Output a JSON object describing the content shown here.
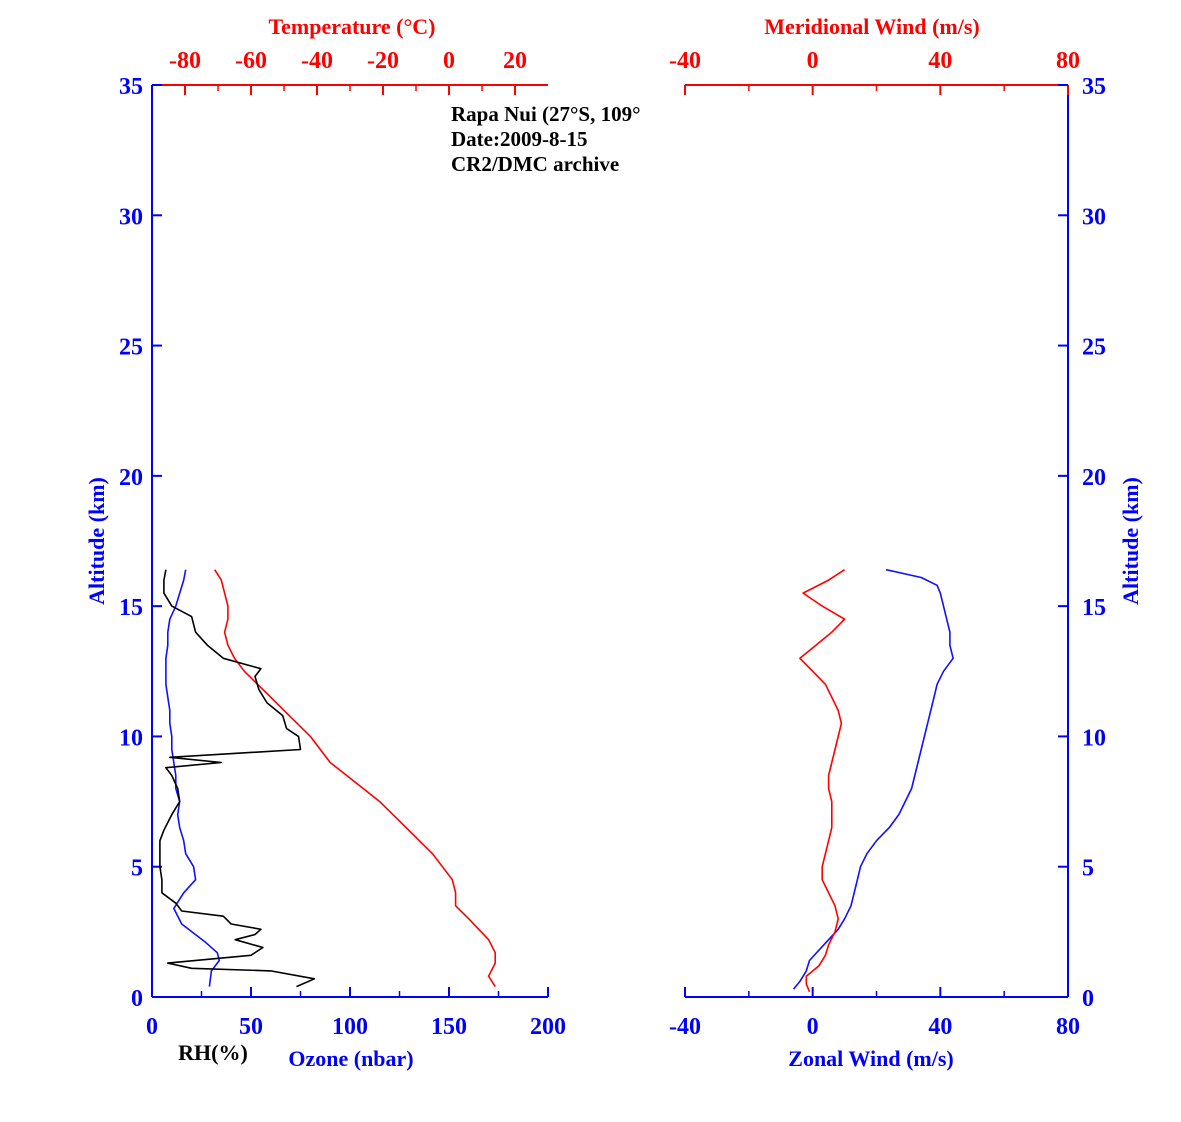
{
  "annotation": {
    "line1": "Rapa Nui (27°S, 109°",
    "line2": "Date:2009-8-15",
    "line3": "CR2/DMC archive"
  },
  "colors": {
    "ozone": "#1010ff",
    "temperature": "#ff0000",
    "rh": "#000000",
    "axis_blue": "#0000ff",
    "axis_red": "#ff0000"
  },
  "chart_data": [
    {
      "type": "line",
      "title": "",
      "ylabel": "Altitude (km)",
      "ylim": [
        0,
        35
      ],
      "yticks": [
        0,
        5,
        10,
        15,
        20,
        25,
        30,
        35
      ],
      "xlabel_bottom": "Ozone (nbar)",
      "xlabel_bottom_extra": "RH(%)",
      "xlim_bottom": [
        0,
        200
      ],
      "xticks_bottom": [
        0,
        50,
        100,
        150,
        200
      ],
      "xlabel_top": "Temperature (°C)",
      "xlim_top": [
        -90,
        30
      ],
      "xticks_top": [
        -80,
        -60,
        -40,
        -20,
        0,
        20
      ],
      "series": [
        {
          "axis": "bottom",
          "color": "#1010ff",
          "y": [
            0.4,
            1.0,
            1.4,
            1.7,
            2.1,
            2.8,
            3.4,
            4.0,
            4.5,
            5.0,
            5.5,
            6.0,
            6.5,
            7.0,
            7.5,
            8.0,
            8.5,
            9.0,
            9.5,
            10.0,
            10.5,
            11.0,
            11.5,
            12.0,
            12.5,
            13.0,
            13.5,
            14.0,
            14.5,
            15.0,
            15.5,
            16.0,
            16.4
          ],
          "x": [
            29,
            30,
            34,
            33,
            27,
            15,
            11,
            16,
            22,
            21,
            17,
            16,
            14,
            13,
            14,
            12,
            12,
            11,
            10,
            10,
            9,
            9,
            8,
            7,
            7,
            7,
            8,
            8,
            9,
            12,
            14,
            16,
            17
          ]
        },
        {
          "axis": "top",
          "color": "#ff0000",
          "y": [
            0.4,
            0.8,
            1.3,
            1.7,
            2.2,
            3.0,
            3.5,
            4.0,
            4.5,
            5.0,
            5.5,
            6.0,
            6.5,
            7.0,
            7.5,
            8.0,
            8.5,
            9.0,
            9.5,
            10.0,
            10.5,
            11.0,
            11.5,
            12.0,
            12.5,
            13.0,
            13.5,
            14.0,
            14.5,
            15.0,
            15.5,
            16.0,
            16.4
          ],
          "x": [
            14,
            12,
            14,
            14,
            12,
            6,
            2,
            2,
            1,
            -2,
            -5,
            -9,
            -13,
            -17,
            -21,
            -26,
            -31,
            -36,
            -39,
            -42,
            -46,
            -50,
            -54,
            -58,
            -62,
            -65,
            -67,
            -68,
            -67,
            -67,
            -68,
            -69,
            -71
          ]
        },
        {
          "axis": "bottom",
          "color": "#000000",
          "y": [
            0.4,
            0.7,
            1.0,
            1.1,
            1.3,
            1.6,
            1.9,
            2.2,
            2.4,
            2.6,
            2.8,
            3.1,
            3.3,
            3.6,
            4.0,
            4.5,
            5.0,
            5.5,
            6.0,
            6.4,
            7.0,
            7.5,
            8.0,
            8.5,
            8.8,
            9.0,
            9.2,
            9.5,
            10.0,
            10.3,
            10.8,
            11.3,
            11.8,
            12.3,
            12.6,
            13.0,
            13.5,
            14.0,
            14.6,
            15.0,
            15.5,
            16.0,
            16.4
          ],
          "x": [
            73,
            82,
            60,
            20,
            8,
            50,
            56,
            42,
            52,
            55,
            40,
            36,
            15,
            12,
            5,
            5,
            4,
            4,
            4,
            6,
            10,
            14,
            13,
            10,
            7,
            35,
            9,
            75,
            74,
            68,
            66,
            58,
            54,
            52,
            55,
            36,
            28,
            22,
            20,
            10,
            6,
            6,
            7
          ]
        }
      ]
    },
    {
      "type": "line",
      "title": "",
      "ylabel": "Altitude (km)",
      "ylim": [
        0,
        35
      ],
      "yticks": [
        0,
        5,
        10,
        15,
        20,
        25,
        30,
        35
      ],
      "xlabel_bottom": "Zonal Wind (m/s)",
      "xlim_bottom": [
        -40,
        80
      ],
      "xticks_bottom": [
        -40,
        0,
        40,
        80
      ],
      "xlabel_top": "Meridional Wind (m/s)",
      "xlim_top": [
        -40,
        80
      ],
      "xticks_top": [
        -40,
        0,
        40,
        80
      ],
      "series": [
        {
          "axis": "bottom",
          "color": "#1010ff",
          "y": [
            0.3,
            0.6,
            1.0,
            1.4,
            1.8,
            2.2,
            2.6,
            3.0,
            3.5,
            4.0,
            4.5,
            5.0,
            5.5,
            6.0,
            6.5,
            7.0,
            7.5,
            8.0,
            8.5,
            9.0,
            9.5,
            10.0,
            10.5,
            11.0,
            11.5,
            12.0,
            12.5,
            13.0,
            13.5,
            14.0,
            14.5,
            15.0,
            15.5,
            15.8,
            16.1,
            16.4
          ],
          "x": [
            -6,
            -4,
            -2,
            -1,
            2,
            5,
            8,
            10,
            12,
            13,
            14,
            15,
            17,
            20,
            24,
            27,
            29,
            31,
            32,
            33,
            34,
            35,
            36,
            37,
            38,
            39,
            41,
            44,
            43,
            43,
            42,
            41,
            40,
            39,
            34,
            23
          ]
        },
        {
          "axis": "top",
          "color": "#ff0000",
          "y": [
            0.2,
            0.5,
            0.8,
            1.2,
            1.6,
            2.0,
            2.5,
            3.0,
            3.5,
            4.0,
            4.5,
            5.0,
            5.5,
            6.0,
            6.5,
            7.0,
            7.5,
            8.0,
            8.5,
            9.0,
            9.5,
            10.0,
            10.5,
            11.0,
            11.5,
            12.0,
            12.5,
            13.0,
            13.5,
            14.0,
            14.5,
            15.0,
            15.5,
            16.0,
            16.4
          ],
          "x": [
            -1,
            -2,
            -2,
            2,
            4,
            5,
            7,
            8,
            7,
            5,
            3,
            3,
            4,
            5,
            6,
            6,
            6,
            5,
            5,
            6,
            7,
            8,
            9,
            8,
            6,
            4,
            0,
            -4,
            1,
            6,
            10,
            3,
            -3,
            5,
            10
          ]
        }
      ]
    }
  ]
}
